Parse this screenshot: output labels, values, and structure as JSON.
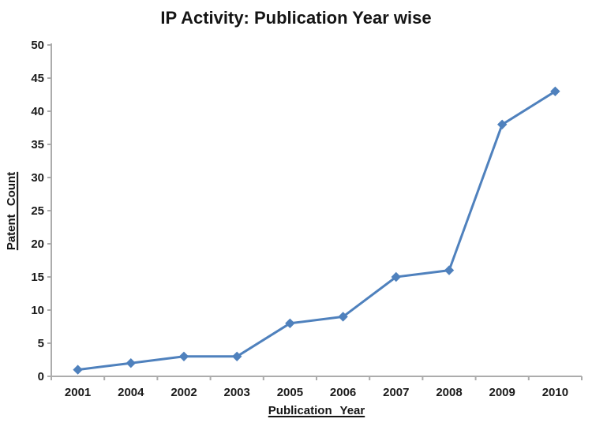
{
  "chart": {
    "title": "IP Activity: Publication Year wise",
    "xlabel": "Publication Year",
    "ylabel": "Patent Count"
  },
  "chart_data": {
    "type": "line",
    "title": "IP Activity: Publication Year wise",
    "xlabel": "Publication Year",
    "ylabel": "Patent Count",
    "categories": [
      "2001",
      "2004",
      "2002",
      "2003",
      "2005",
      "2006",
      "2007",
      "2008",
      "2009",
      "2010"
    ],
    "values": [
      1,
      2,
      3,
      3,
      8,
      9,
      15,
      16,
      38,
      43
    ],
    "ylim": [
      0,
      50
    ],
    "ytick_step": 5,
    "grid": false,
    "legend": "none",
    "marker": "diamond",
    "line_color": "#4F81BD",
    "axis_color": "#ACACAC",
    "text_color": "#1a1a1a"
  }
}
